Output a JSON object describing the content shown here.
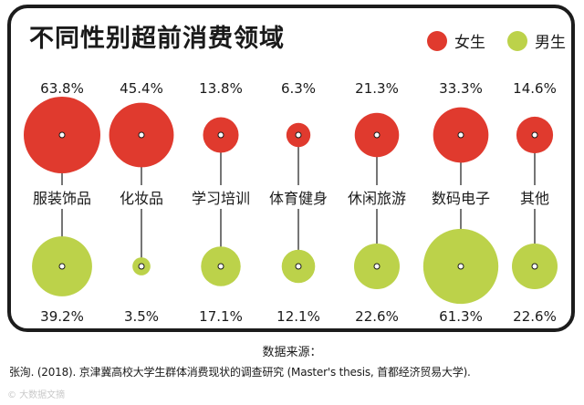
{
  "chart_data": {
    "type": "bubble",
    "title": "不同性别超前消费领域",
    "categories": [
      "服装饰品",
      "化妆品",
      "学习培训",
      "体育健身",
      "休闲旅游",
      "数码电子",
      "其他"
    ],
    "series": [
      {
        "name": "女生",
        "color": "#e03a2e",
        "values": [
          63.8,
          45.4,
          13.8,
          6.3,
          21.3,
          33.3,
          14.6
        ],
        "labels": [
          "63.8%",
          "45.4%",
          "13.8%",
          "6.3%",
          "21.3%",
          "33.3%",
          "14.6%"
        ]
      },
      {
        "name": "男生",
        "color": "#bcd24a",
        "values": [
          39.2,
          3.5,
          17.1,
          12.1,
          22.6,
          61.3,
          22.6
        ],
        "labels": [
          "39.2%",
          "3.5%",
          "17.1%",
          "12.1%",
          "22.6%",
          "61.3%",
          "22.6%"
        ]
      }
    ]
  },
  "source": {
    "heading": "数据来源：",
    "citation": "张洵. (2018). 京津冀高校大学生群体消费现状的调查研究 (Master's thesis, 首都经济贸易大学)."
  },
  "watermark": "© 大数据文摘"
}
